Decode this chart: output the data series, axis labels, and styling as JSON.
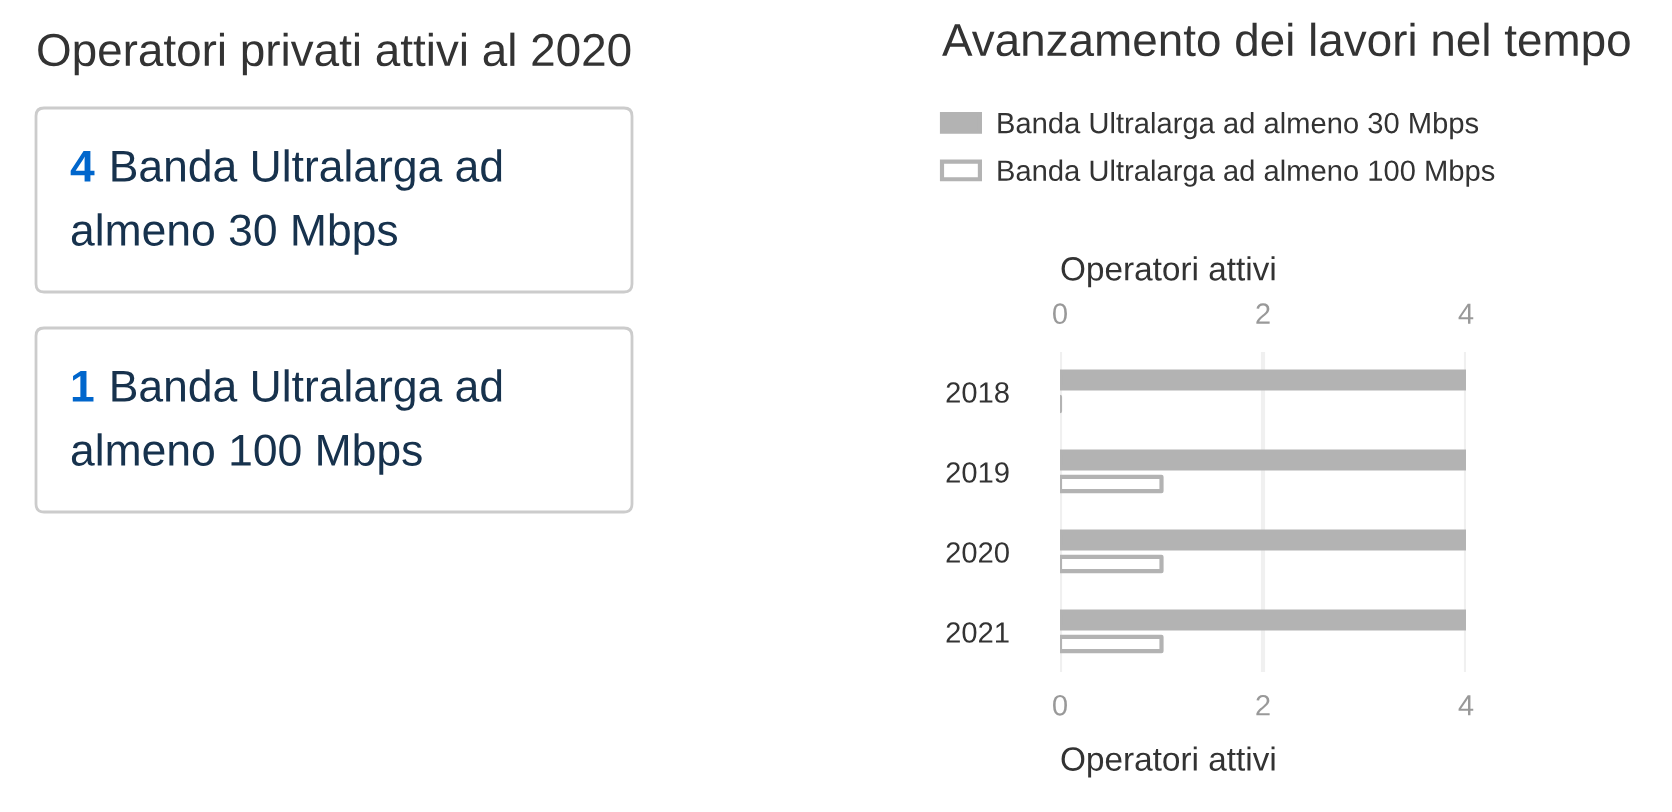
{
  "chart_data": [
    {
      "type": "other",
      "title": "Operatori privati attivi al 2020",
      "categories": [
        "Banda Ultralarga ad almeno 30 Mbps",
        "Banda Ultralarga ad almeno 100 Mbps"
      ],
      "values": [
        4,
        1
      ],
      "data_labels": true
    },
    {
      "type": "bar",
      "orientation": "horizontal",
      "title": "Avanzamento dei lavori nel tempo",
      "categories": [
        "2018",
        "2019",
        "2020",
        "2021"
      ],
      "series": [
        {
          "name": "Banda Ultralarga ad almeno 30 Mbps",
          "color": "#b3b3b3",
          "values": [
            4,
            4,
            4,
            4
          ]
        },
        {
          "name": "Banda Ultralarga ad almeno 100 Mbps",
          "color": "#b3b3b3",
          "values": [
            0,
            1,
            1,
            1
          ]
        }
      ],
      "xlim": [
        0,
        4
      ],
      "xticks": [
        0,
        2,
        4
      ],
      "xlabel": "Operatori attivi",
      "x2lim": [
        0,
        4
      ],
      "x2ticks": [
        0,
        2,
        4
      ],
      "x2label": "Operatori attivi",
      "grid": "x",
      "legend": "top left"
    }
  ]
}
